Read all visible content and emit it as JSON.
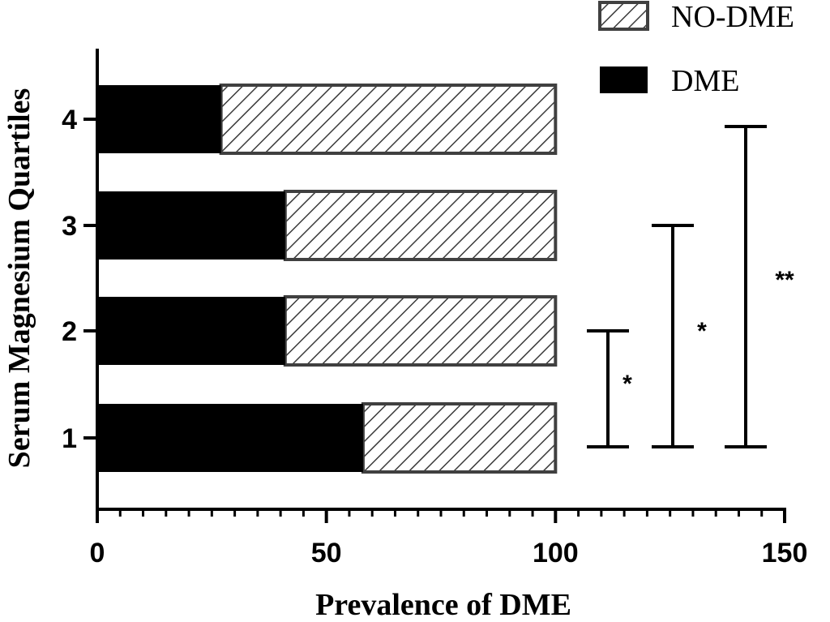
{
  "chart_data": {
    "type": "bar",
    "orientation": "horizontal",
    "stacked": true,
    "title": "",
    "xlabel": "Prevalence of DME",
    "ylabel": "Serum Magnesium Quartiles",
    "xlim": [
      0,
      150
    ],
    "x_ticks": [
      0,
      50,
      100,
      150
    ],
    "x_minor_step": 5,
    "categories": [
      "1",
      "2",
      "3",
      "4"
    ],
    "series": [
      {
        "name": "DME",
        "values": [
          58,
          41,
          41,
          27
        ],
        "fill": "solid",
        "color": "#000000"
      },
      {
        "name": "NO-DME",
        "values": [
          42,
          59,
          59,
          73
        ],
        "fill": "hatched",
        "color": "#ffffff"
      }
    ],
    "legend": {
      "position": "top-right",
      "order": [
        "NO-DME",
        "DME"
      ]
    },
    "grid": false,
    "annotations": [
      {
        "type": "significance-bracket",
        "from": "1",
        "to": "2",
        "label": "*"
      },
      {
        "type": "significance-bracket",
        "from": "1",
        "to": "3",
        "label": "*"
      },
      {
        "type": "significance-bracket",
        "from": "1",
        "to": "4",
        "label": "**"
      }
    ]
  }
}
